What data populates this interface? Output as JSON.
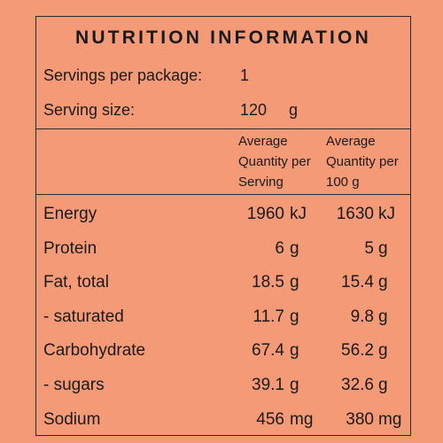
{
  "title": "NUTRITION INFORMATION",
  "servings": {
    "label": "Servings per package:",
    "value": "1"
  },
  "serving_size": {
    "label": "Serving size:",
    "value": "120",
    "unit": "g"
  },
  "columns": {
    "per_serving": [
      "Average",
      "Quantity per",
      "Serving"
    ],
    "per_100g": [
      "Average",
      "Quantity per",
      "100 g"
    ]
  },
  "nutrients": [
    {
      "name": "Energy",
      "serving": "1960",
      "serving_unit": "kJ",
      "per100": "1630",
      "per100_unit": "kJ"
    },
    {
      "name": "Protein",
      "serving": "6",
      "serving_unit": "g",
      "per100": "5",
      "per100_unit": "g"
    },
    {
      "name": "Fat, total",
      "serving": "18.5",
      "serving_unit": "g",
      "per100": "15.4",
      "per100_unit": "g"
    },
    {
      "name": "- saturated",
      "serving": "11.7",
      "serving_unit": "g",
      "per100": "9.8",
      "per100_unit": "g"
    },
    {
      "name": "Carbohydrate",
      "serving": "67.4",
      "serving_unit": "g",
      "per100": "56.2",
      "per100_unit": "g"
    },
    {
      "name": "- sugars",
      "serving": "39.1",
      "serving_unit": "g",
      "per100": "32.6",
      "per100_unit": "g"
    },
    {
      "name": "Sodium",
      "serving": "456",
      "serving_unit": "mg",
      "per100": "380",
      "per100_unit": "mg"
    }
  ],
  "colors": {
    "background": "#f59a77",
    "border": "#2a2a2a",
    "text": "#1a1a1a"
  }
}
